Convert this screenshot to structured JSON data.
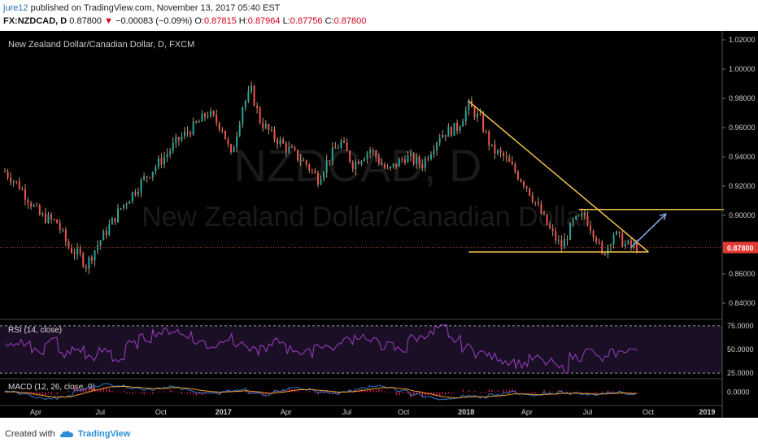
{
  "header": {
    "user": "jure12",
    "published": "published on TradingView.com, November 13, 2017 05:40 EST",
    "symbol": "FX:NZDCAD, D",
    "price": "0.87800",
    "change": "−0.00083 (−0.09%)",
    "o_label": "O:",
    "o": "0.87815",
    "h_label": "H:",
    "h": "0.87964",
    "l_label": "L:",
    "l": "0.87756",
    "c_label": "C:",
    "c": "0.87800"
  },
  "chart": {
    "title": "New Zealand Dollar/Canadian Dollar, D, FXCM",
    "watermark_symbol": "NZDCAD, D",
    "watermark_name": "New Zealand Dollar/Canadian Dollar",
    "current_price_label": "0.87800"
  },
  "chart_data": {
    "type": "candlestick",
    "price_axis": [
      "1.02000",
      "1.00000",
      "0.98000",
      "0.96000",
      "0.94000",
      "0.92000",
      "0.90000",
      "0.88000",
      "0.86000",
      "0.84000"
    ],
    "time_axis": [
      "Apr",
      "Jul",
      "Oct",
      "2017",
      "Apr",
      "Jul",
      "Oct",
      "2018",
      "Apr",
      "Jul",
      "Oct",
      "2019"
    ],
    "ylim": [
      0.83,
      1.025
    ],
    "close_path": [
      [
        0,
        0.93
      ],
      [
        5,
        0.92
      ],
      [
        12,
        0.9
      ],
      [
        18,
        0.895
      ],
      [
        22,
        0.878
      ],
      [
        26,
        0.872
      ],
      [
        28,
        0.866
      ],
      [
        32,
        0.88
      ],
      [
        40,
        0.905
      ],
      [
        48,
        0.925
      ],
      [
        55,
        0.94
      ],
      [
        60,
        0.952
      ],
      [
        66,
        0.962
      ],
      [
        70,
        0.97
      ],
      [
        75,
        0.96
      ],
      [
        78,
        0.94
      ],
      [
        82,
        0.975
      ],
      [
        85,
        0.985
      ],
      [
        88,
        0.965
      ],
      [
        92,
        0.955
      ],
      [
        98,
        0.945
      ],
      [
        104,
        0.935
      ],
      [
        108,
        0.925
      ],
      [
        112,
        0.94
      ],
      [
        116,
        0.95
      ],
      [
        120,
        0.935
      ],
      [
        126,
        0.945
      ],
      [
        132,
        0.93
      ],
      [
        138,
        0.94
      ],
      [
        144,
        0.935
      ],
      [
        150,
        0.955
      ],
      [
        156,
        0.96
      ],
      [
        160,
        0.975
      ],
      [
        164,
        0.965
      ],
      [
        168,
        0.945
      ],
      [
        172,
        0.94
      ],
      [
        176,
        0.93
      ],
      [
        180,
        0.92
      ],
      [
        184,
        0.905
      ],
      [
        188,
        0.89
      ],
      [
        192,
        0.878
      ],
      [
        196,
        0.895
      ],
      [
        200,
        0.9
      ],
      [
        204,
        0.885
      ],
      [
        206,
        0.872
      ],
      [
        210,
        0.888
      ],
      [
        214,
        0.88
      ],
      [
        218,
        0.878
      ]
    ],
    "lines": {
      "descending_resistance": [
        [
          160,
          0.978
        ],
        [
          222,
          0.875
        ]
      ],
      "horizontal_support": [
        [
          160,
          0.875
        ],
        [
          222,
          0.875
        ]
      ],
      "horizontal_resistance": [
        [
          198,
          0.904
        ],
        [
          248,
          0.904
        ]
      ],
      "projection_arrow": [
        [
          216,
          0.878
        ],
        [
          228,
          0.901
        ]
      ]
    },
    "indicators": [
      {
        "name": "RSI (14, close)",
        "levels": [
          "75.0000",
          "50.0000",
          "25.0000"
        ],
        "ylim": [
          20,
          80
        ],
        "values": [
          52,
          58,
          48,
          60,
          45,
          50,
          42,
          48,
          40,
          55,
          62,
          68,
          70,
          66,
          58,
          54,
          62,
          56,
          48,
          52,
          58,
          50,
          46,
          55,
          52,
          60,
          64,
          58,
          54,
          50,
          62,
          66,
          72,
          60,
          52,
          46,
          42,
          38,
          35,
          40,
          36,
          30,
          42,
          48,
          40,
          46,
          50,
          45
        ]
      },
      {
        "name": "MACD (12, 26, close, 9)",
        "levels": [
          "0.0000"
        ],
        "ylim": [
          -0.01,
          0.01
        ],
        "values": [
          0.001,
          -0.002,
          -0.004,
          -0.005,
          -0.003,
          0.001,
          0.004,
          0.006,
          0.005,
          0.003,
          0.002,
          0.003,
          0.004,
          0.002,
          0.0,
          -0.001,
          0.001,
          0.002,
          0.0,
          -0.002,
          0.001,
          0.003,
          0.002,
          0.0,
          -0.001,
          0.001,
          0.003,
          0.005,
          0.004,
          0.001,
          -0.002,
          -0.004,
          -0.006,
          -0.005,
          -0.003,
          -0.004,
          -0.002,
          0.0,
          -0.002,
          -0.003,
          -0.001,
          0.0,
          -0.001,
          -0.002,
          -0.001,
          0.0,
          -0.001,
          0.0
        ]
      }
    ],
    "colors": {
      "up": "#26a69a",
      "down": "#ef5350",
      "trendline": "#f3c34a",
      "arrow": "#8aa7e8",
      "rsi": "#9c3fc4",
      "macd": "#2f7bd1",
      "signal": "#f59c2b",
      "hist": "#e91e63"
    }
  },
  "footer": {
    "created_with": "Created with",
    "brand": "TradingView"
  }
}
